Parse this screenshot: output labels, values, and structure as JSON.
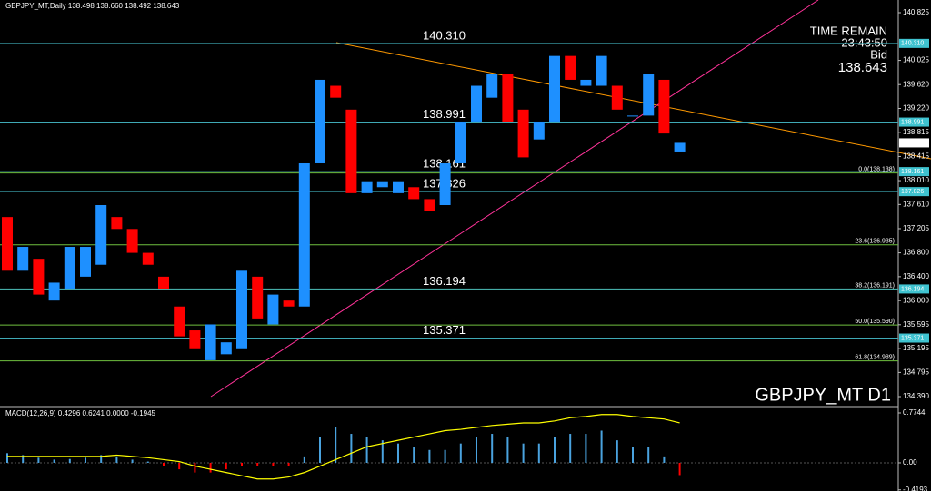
{
  "header": "GBPJPY_MT,Daily 138.498 138.660 138.492 138.643",
  "time_remain_label": "TIME REMAIN",
  "time_remain": "23:43:50",
  "bid_label": "Bid",
  "symbol_label": "GBPJPY_MT D1",
  "chart_data": [
    {
      "type": "candlestick",
      "open": [
        137.4,
        136.5,
        136.7,
        136.0,
        136.2,
        136.4,
        136.6,
        137.4,
        137.2,
        136.8,
        136.4,
        135.9,
        135.5,
        135.0,
        135.1,
        135.2,
        136.4,
        135.6,
        136.0,
        135.9,
        138.3,
        139.6,
        139.2,
        137.8,
        137.9,
        137.8,
        137.9,
        137.7,
        137.6,
        138.3,
        139.0,
        139.4,
        139.8,
        139.2,
        138.7,
        139.0,
        140.1,
        139.6,
        139.6,
        139.6,
        139.1,
        139.1,
        139.7,
        138.498
      ],
      "close": [
        136.5,
        136.9,
        136.1,
        136.3,
        136.9,
        136.9,
        137.6,
        137.2,
        136.8,
        136.6,
        136.2,
        135.4,
        135.2,
        135.6,
        135.3,
        136.5,
        135.7,
        136.1,
        135.9,
        138.3,
        139.7,
        139.4,
        137.8,
        138.0,
        138.0,
        138.0,
        137.7,
        137.5,
        138.3,
        139.0,
        139.6,
        139.8,
        139.0,
        138.4,
        139.0,
        140.1,
        139.7,
        139.7,
        140.1,
        139.2,
        139.1,
        139.8,
        138.8,
        138.643
      ],
      "up_color": "#1e90ff",
      "down_color": "#ff0000",
      "ylim": [
        134.238,
        141.038
      ],
      "yticks": [
        {
          "value": 140.825,
          "label": "140.825"
        },
        {
          "value": 140.025,
          "label": "140.025"
        },
        {
          "value": 139.62,
          "label": "139.620"
        },
        {
          "value": 139.22,
          "label": "139.220"
        },
        {
          "value": 138.815,
          "label": "138.815"
        },
        {
          "value": 138.415,
          "label": "138.415"
        },
        {
          "value": 138.01,
          "label": "138.010"
        },
        {
          "value": 137.61,
          "label": "137.610"
        },
        {
          "value": 137.205,
          "label": "137.205"
        },
        {
          "value": 136.8,
          "label": "136.800"
        },
        {
          "value": 136.4,
          "label": "136.400"
        },
        {
          "value": 136.0,
          "label": "136.000"
        },
        {
          "value": 135.595,
          "label": "135.595"
        },
        {
          "value": 135.195,
          "label": "135.195"
        },
        {
          "value": 134.795,
          "label": "134.795"
        },
        {
          "value": 134.39,
          "label": "134.390"
        }
      ],
      "levels": [
        {
          "value": 140.31,
          "label": "140.310"
        },
        {
          "value": 138.991,
          "label": "138.991"
        },
        {
          "value": 138.161,
          "label": "138.161"
        },
        {
          "value": 137.826,
          "label": "137.826"
        },
        {
          "value": 136.194,
          "label": "136.194"
        },
        {
          "value": 135.371,
          "label": "135.371"
        }
      ],
      "fib_levels": [
        {
          "value": 138.138,
          "label": "0.0(138.138)"
        },
        {
          "value": 136.935,
          "label": "23.6(136.935)"
        },
        {
          "value": 136.191,
          "label": "38.2(136.191)"
        },
        {
          "value": 135.59,
          "label": "50.0(135.590)"
        },
        {
          "value": 134.989,
          "label": "61.8(134.989)"
        }
      ],
      "bid": {
        "value": 138.643,
        "label": "138.643"
      }
    },
    {
      "type": "macd",
      "title": "MACD(12,26,9) 0.4296 0.6241 0.0000 -0.1945",
      "histogram": [
        0.15,
        0.12,
        0.08,
        0.05,
        0.06,
        0.08,
        0.12,
        0.1,
        0.05,
        0.02,
        -0.05,
        -0.1,
        -0.15,
        -0.15,
        -0.1,
        -0.05,
        -0.05,
        -0.05,
        -0.05,
        0.1,
        0.4,
        0.55,
        0.45,
        0.4,
        0.35,
        0.3,
        0.25,
        0.2,
        0.2,
        0.3,
        0.4,
        0.45,
        0.4,
        0.3,
        0.3,
        0.4,
        0.45,
        0.45,
        0.5,
        0.35,
        0.25,
        0.25,
        0.1,
        -0.19
      ],
      "signal": [
        0.1,
        0.1,
        0.1,
        0.1,
        0.1,
        0.1,
        0.1,
        0.12,
        0.1,
        0.08,
        0.05,
        0.02,
        -0.05,
        -0.1,
        -0.15,
        -0.2,
        -0.25,
        -0.25,
        -0.22,
        -0.15,
        -0.05,
        0.05,
        0.15,
        0.25,
        0.3,
        0.35,
        0.4,
        0.45,
        0.5,
        0.52,
        0.55,
        0.58,
        0.6,
        0.62,
        0.62,
        0.65,
        0.7,
        0.72,
        0.75,
        0.75,
        0.72,
        0.7,
        0.68,
        0.62
      ],
      "up_color": "#4aa3df",
      "down_color": "#ff0000",
      "signal_color": "#ffff00",
      "ylim": [
        -0.437,
        0.859
      ],
      "yticks": [
        0.7744,
        {
          "value": 0,
          "label": "0.00"
        },
        -0.4193
      ]
    }
  ]
}
